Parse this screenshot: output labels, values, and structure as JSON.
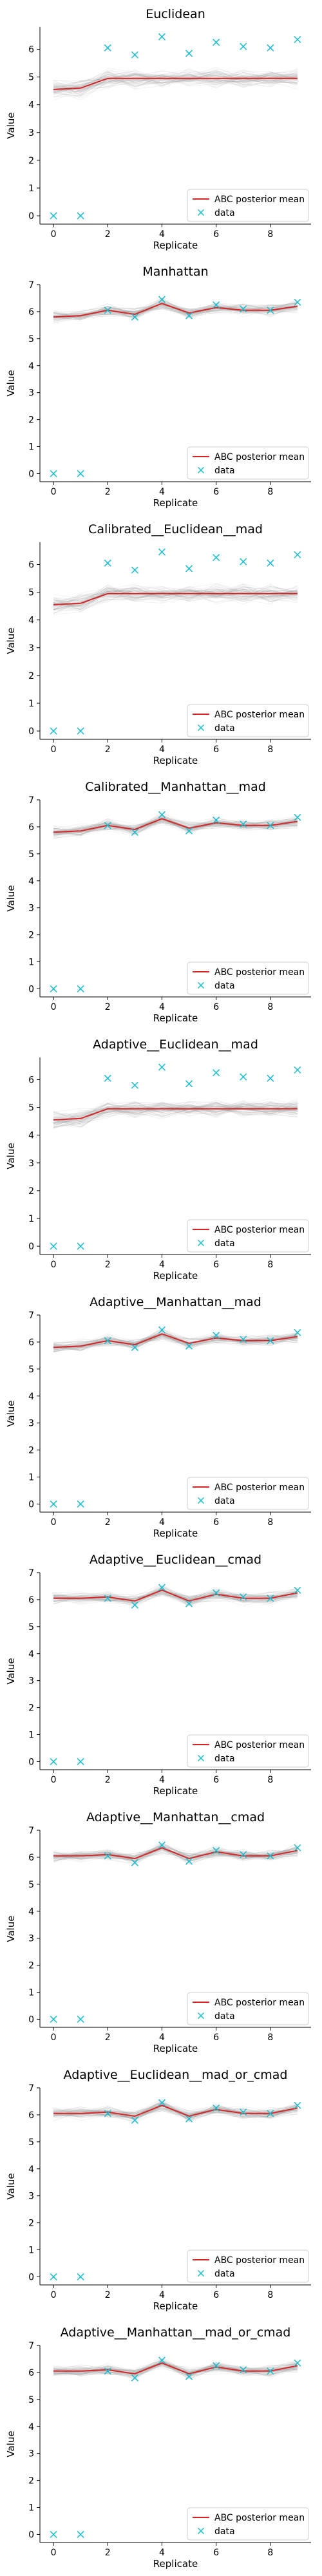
{
  "chart_data": {
    "type": "line",
    "x": [
      0,
      1,
      2,
      3,
      4,
      5,
      6,
      7,
      8,
      9
    ],
    "xlabel": "Replicate",
    "ylabel": "Value",
    "xticks": [
      0,
      2,
      4,
      6,
      8
    ],
    "yticks": [
      0,
      1,
      2,
      3,
      4,
      5,
      6,
      7
    ],
    "legend": {
      "placement": "lower-right",
      "entries": [
        "ABC posterior mean",
        "data"
      ]
    },
    "colors": {
      "posterior_mean": "#d62728",
      "data": "#17becf",
      "posterior_samples": "#9a9a9a"
    },
    "data_values": [
      0.0,
      0.0,
      6.05,
      5.8,
      6.45,
      5.85,
      6.25,
      6.1,
      6.05,
      6.35
    ],
    "panels": [
      {
        "title": "Euclidean",
        "ymax": 6.8,
        "yticks": [
          0,
          1,
          2,
          3,
          4,
          5,
          6
        ],
        "mean": [
          4.55,
          4.6,
          4.95,
          4.95,
          4.95,
          4.95,
          4.95,
          4.95,
          4.95,
          4.95
        ],
        "spread": 0.45
      },
      {
        "title": "Manhattan",
        "ymax": 7.0,
        "yticks": [
          0,
          1,
          2,
          3,
          4,
          5,
          6,
          7
        ],
        "mean": [
          5.8,
          5.85,
          6.05,
          5.9,
          6.3,
          5.95,
          6.15,
          6.05,
          6.05,
          6.2
        ],
        "spread": 0.3
      },
      {
        "title": "Calibrated__Euclidean__mad",
        "ymax": 6.8,
        "yticks": [
          0,
          1,
          2,
          3,
          4,
          5,
          6
        ],
        "mean": [
          4.55,
          4.6,
          4.95,
          4.95,
          4.95,
          4.95,
          4.95,
          4.95,
          4.95,
          4.95
        ],
        "spread": 0.45
      },
      {
        "title": "Calibrated__Manhattan__mad",
        "ymax": 7.0,
        "yticks": [
          0,
          1,
          2,
          3,
          4,
          5,
          6,
          7
        ],
        "mean": [
          5.8,
          5.85,
          6.05,
          5.9,
          6.3,
          5.95,
          6.15,
          6.05,
          6.05,
          6.2
        ],
        "spread": 0.3
      },
      {
        "title": "Adaptive__Euclidean__mad",
        "ymax": 6.8,
        "yticks": [
          0,
          1,
          2,
          3,
          4,
          5,
          6
        ],
        "mean": [
          4.55,
          4.6,
          4.95,
          4.95,
          4.95,
          4.95,
          4.95,
          4.95,
          4.95,
          4.95
        ],
        "spread": 0.45
      },
      {
        "title": "Adaptive__Manhattan__mad",
        "ymax": 7.0,
        "yticks": [
          0,
          1,
          2,
          3,
          4,
          5,
          6,
          7
        ],
        "mean": [
          5.8,
          5.85,
          6.05,
          5.9,
          6.3,
          5.95,
          6.15,
          6.05,
          6.05,
          6.2
        ],
        "spread": 0.3
      },
      {
        "title": "Adaptive__Euclidean__cmad",
        "ymax": 7.0,
        "yticks": [
          0,
          1,
          2,
          3,
          4,
          5,
          6,
          7
        ],
        "mean": [
          6.05,
          6.05,
          6.1,
          5.95,
          6.35,
          5.95,
          6.2,
          6.05,
          6.05,
          6.25
        ],
        "spread": 0.3
      },
      {
        "title": "Adaptive__Manhattan__cmad",
        "ymax": 7.0,
        "yticks": [
          0,
          1,
          2,
          3,
          4,
          5,
          6,
          7
        ],
        "mean": [
          6.05,
          6.05,
          6.1,
          5.95,
          6.35,
          5.95,
          6.2,
          6.05,
          6.05,
          6.25
        ],
        "spread": 0.3
      },
      {
        "title": "Adaptive__Euclidean__mad_or_cmad",
        "ymax": 7.0,
        "yticks": [
          0,
          1,
          2,
          3,
          4,
          5,
          6,
          7
        ],
        "mean": [
          6.05,
          6.05,
          6.1,
          5.95,
          6.35,
          5.95,
          6.2,
          6.05,
          6.05,
          6.25
        ],
        "spread": 0.3
      },
      {
        "title": "Adaptive__Manhattan__mad_or_cmad",
        "ymax": 7.0,
        "yticks": [
          0,
          1,
          2,
          3,
          4,
          5,
          6,
          7
        ],
        "mean": [
          6.05,
          6.05,
          6.1,
          5.95,
          6.35,
          5.95,
          6.2,
          6.05,
          6.05,
          6.25
        ],
        "spread": 0.3
      }
    ]
  }
}
